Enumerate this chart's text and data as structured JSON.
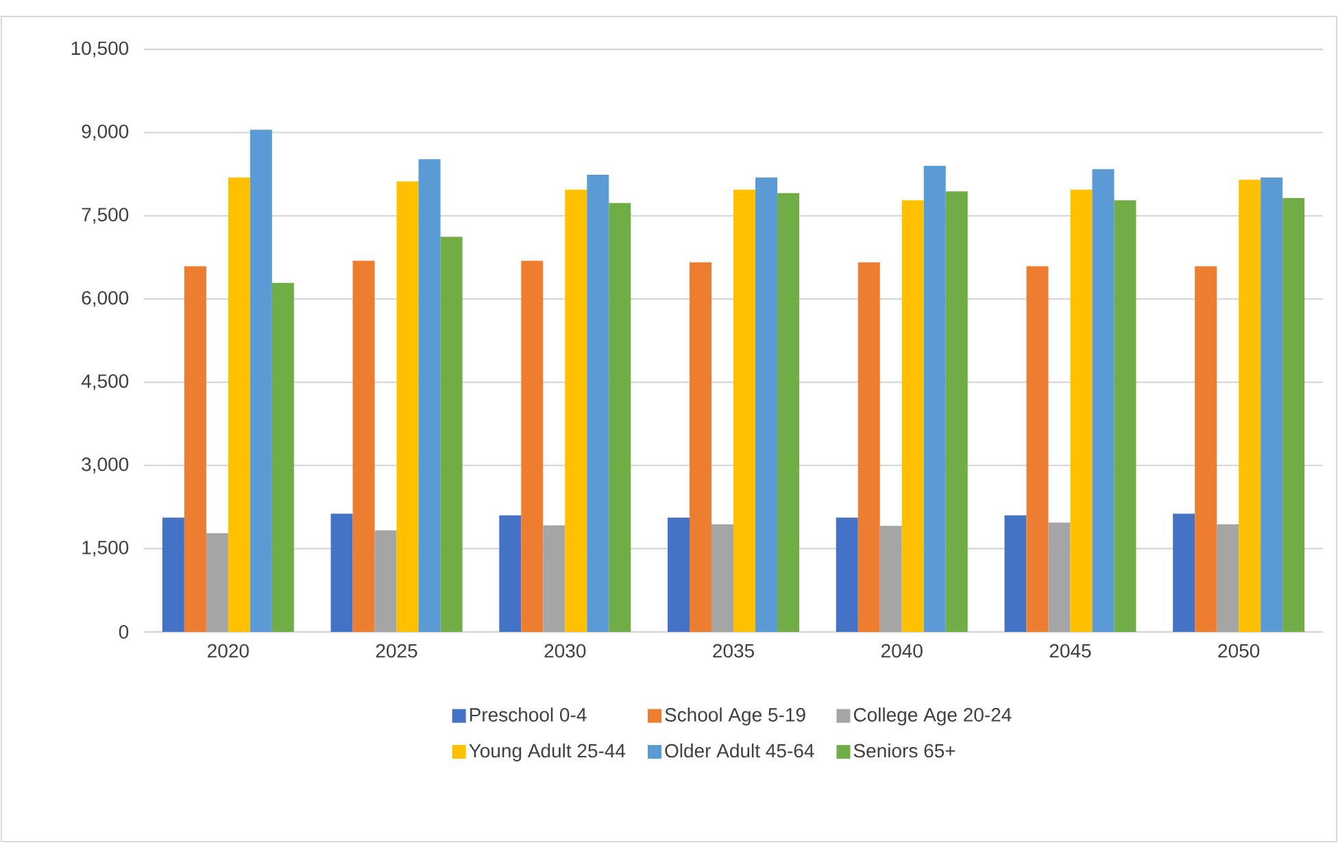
{
  "chart_data": {
    "type": "bar",
    "categories": [
      "2020",
      "2025",
      "2030",
      "2035",
      "2040",
      "2045",
      "2050"
    ],
    "series": [
      {
        "name": "Preschool 0-4",
        "color": "#4472c4",
        "values": [
          2060,
          2130,
          2100,
          2060,
          2060,
          2100,
          2130
        ]
      },
      {
        "name": "School Age 5-19",
        "color": "#ed7d31",
        "values": [
          6590,
          6690,
          6690,
          6660,
          6660,
          6590,
          6590
        ]
      },
      {
        "name": "College Age 20-24",
        "color": "#a5a5a5",
        "values": [
          1780,
          1830,
          1920,
          1940,
          1910,
          1970,
          1940
        ]
      },
      {
        "name": "Young Adult 25-44",
        "color": "#ffc000",
        "values": [
          8190,
          8120,
          7970,
          7970,
          7780,
          7970,
          8150
        ]
      },
      {
        "name": "Older Adult 45-64",
        "color": "#5b9bd5",
        "values": [
          9050,
          8520,
          8240,
          8190,
          8400,
          8340,
          8190
        ]
      },
      {
        "name": "Seniors 65+",
        "color": "#70ad47",
        "values": [
          6290,
          7120,
          7730,
          7910,
          7940,
          7780,
          7820
        ]
      }
    ],
    "ylim": [
      0,
      10500
    ],
    "yticks": [
      0,
      {
        "value": 1500,
        "label": "1,500"
      },
      {
        "value": 3000,
        "label": "3,000"
      },
      {
        "value": 4500,
        "label": "4,500"
      },
      {
        "value": 6000,
        "label": "6,000"
      },
      {
        "value": 7500,
        "label": "7,500"
      },
      {
        "value": 9000,
        "label": "9,000"
      },
      {
        "value": 10500,
        "label": "10,500"
      }
    ],
    "grid": "y",
    "legend": "bottom"
  }
}
